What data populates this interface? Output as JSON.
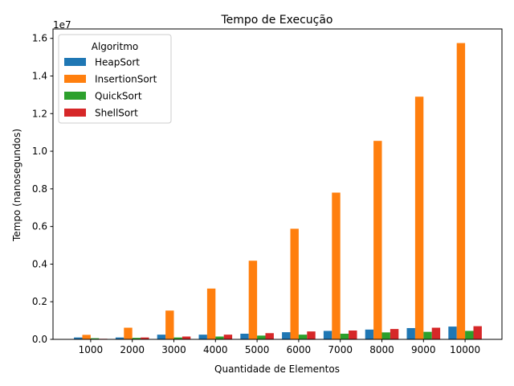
{
  "chart_data": {
    "type": "bar",
    "title": "Tempo de Execução",
    "xlabel": "Quantidade de Elementos",
    "ylabel": "Tempo (nanosegundos)",
    "y_multiplier_label": "1e7",
    "ylim": [
      0,
      16500000
    ],
    "yticks": [
      0,
      2000000,
      4000000,
      6000000,
      8000000,
      10000000,
      12000000,
      14000000,
      16000000
    ],
    "ytick_labels": [
      "0.0",
      "0.2",
      "0.4",
      "0.6",
      "0.8",
      "1.0",
      "1.2",
      "1.4",
      "1.6"
    ],
    "categories": [
      "1000",
      "2000",
      "3000",
      "4000",
      "5000",
      "6000",
      "7000",
      "8000",
      "9000",
      "10000"
    ],
    "legend_title": "Algoritmo",
    "legend_position": "top-left",
    "grid": false,
    "series": [
      {
        "name": "HeapSort",
        "color": "#1f77b4",
        "values": [
          100000,
          100000,
          250000,
          250000,
          300000,
          380000,
          450000,
          520000,
          600000,
          680000
        ]
      },
      {
        "name": "InsertionSort",
        "color": "#ff7f0e",
        "values": [
          240000,
          620000,
          1530000,
          2700000,
          4180000,
          5880000,
          7800000,
          10550000,
          12900000,
          15750000
        ]
      },
      {
        "name": "QuickSort",
        "color": "#2ca02c",
        "values": [
          60000,
          80000,
          100000,
          150000,
          200000,
          250000,
          300000,
          370000,
          400000,
          450000
        ]
      },
      {
        "name": "ShellSort",
        "color": "#d62728",
        "values": [
          30000,
          100000,
          150000,
          250000,
          330000,
          420000,
          470000,
          550000,
          620000,
          700000
        ]
      }
    ]
  }
}
